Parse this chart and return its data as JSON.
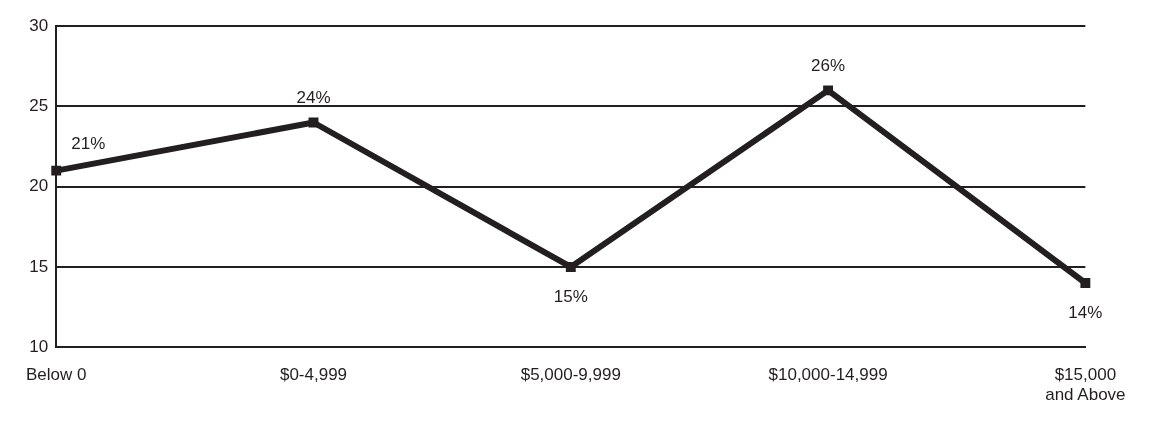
{
  "chart_data": {
    "type": "line",
    "categories": [
      "Below 0",
      "$0-4,999",
      "$5,000-9,999",
      "$10,000-14,999",
      "$15,000\nand Above"
    ],
    "series": [
      {
        "color": "#231f20",
        "values": [
          21,
          24,
          15,
          26,
          14
        ]
      }
    ],
    "value_labels": [
      "21%",
      "24%",
      "15%",
      "26%",
      "14%"
    ],
    "ylim": [
      10,
      30
    ],
    "yticks": [
      10,
      15,
      20,
      25,
      30
    ],
    "grid": "y",
    "legend": false,
    "marker": "square",
    "line_style": "solid"
  }
}
